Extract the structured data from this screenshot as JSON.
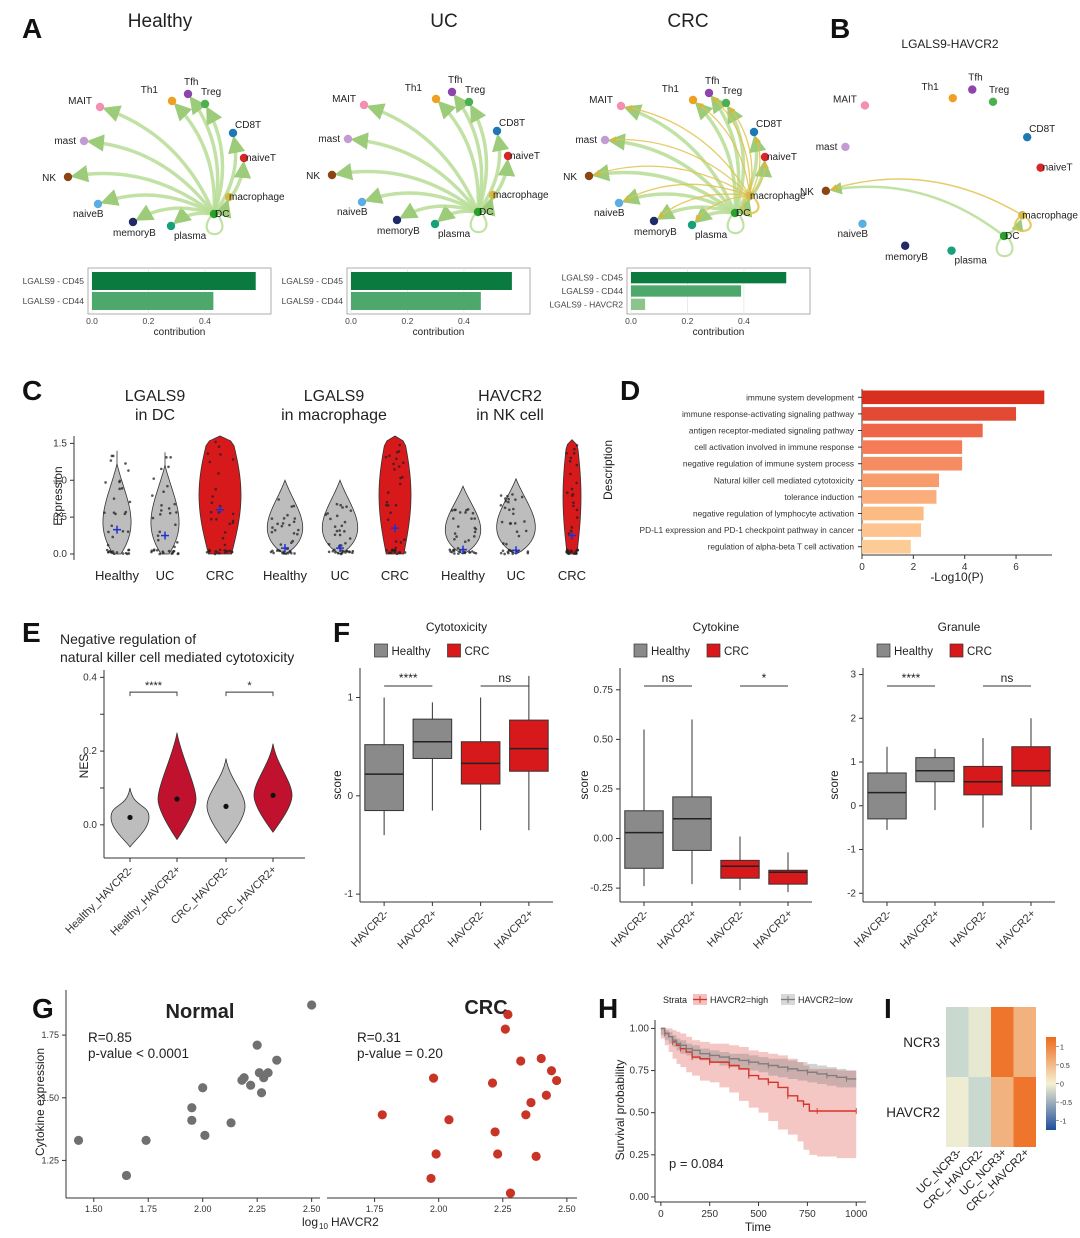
{
  "panel_labels": [
    "A",
    "B",
    "C",
    "D",
    "E",
    "F",
    "G",
    "H",
    "I"
  ],
  "colors": {
    "green_edge": "#b7dd95",
    "yellow_edge": "#e2c24a",
    "healthy_grey": "#bdbdbd",
    "crc_red": "#d7191c",
    "bar_dark": "#0b7a3e",
    "bar_mid": "#4ea86b",
    "bar_light": "#8cc48c",
    "scatter_grey": "#707070",
    "scatter_red": "#c83527",
    "km_high": "#d6342b",
    "km_low": "#7f7f7f"
  },
  "network": {
    "node_colors": {
      "Th1": "#f0a020",
      "Tfh": "#8e44ad",
      "Treg": "#4caf50",
      "CD8T": "#1f77b4",
      "naiveT": "#d62728",
      "macrophage": "#d4b94a",
      "DC": "#2ca02c",
      "plasma": "#17a07a",
      "memoryB": "#1f2a66",
      "naiveB": "#5dade2",
      "NK": "#8b4513",
      "mast": "#c39bd3",
      "MAIT": "#f48fb1"
    }
  },
  "chart_data": [
    {
      "id": "A-healthy",
      "type": "network",
      "title": "Healthy",
      "nodes": [
        "Th1",
        "Tfh",
        "Treg",
        "CD8T",
        "naiveT",
        "macrophage",
        "DC",
        "plasma",
        "memoryB",
        "naiveB",
        "NK",
        "mast",
        "MAIT"
      ],
      "green_edges_from": "DC",
      "yellow_edges_from": ""
    },
    {
      "id": "A-uc",
      "type": "network",
      "title": "UC",
      "nodes": [
        "Th1",
        "Tfh",
        "Treg",
        "CD8T",
        "naiveT",
        "macrophage",
        "DC",
        "plasma",
        "memoryB",
        "naiveB",
        "NK",
        "mast",
        "MAIT"
      ],
      "green_edges_from": "DC",
      "yellow_edges_from": ""
    },
    {
      "id": "A-crc",
      "type": "network",
      "title": "CRC",
      "nodes": [
        "Th1",
        "Tfh",
        "Treg",
        "CD8T",
        "naiveT",
        "macrophage",
        "DC",
        "plasma",
        "memoryB",
        "naiveB",
        "NK",
        "mast",
        "MAIT"
      ],
      "green_edges_from": "DC",
      "yellow_edges_from": "macrophage"
    },
    {
      "id": "A-healthy-bar",
      "type": "bar",
      "orientation": "horizontal",
      "categories": [
        "LGALS9 - CD45",
        "LGALS9 - CD44"
      ],
      "values": [
        0.58,
        0.43
      ],
      "xlabel": "contribution",
      "xticks": [
        "0.0",
        "0.2",
        "0.4"
      ],
      "xlim": [
        0,
        0.62
      ]
    },
    {
      "id": "A-uc-bar",
      "type": "bar",
      "orientation": "horizontal",
      "categories": [
        "LGALS9 - CD45",
        "LGALS9 - CD44"
      ],
      "values": [
        0.57,
        0.46
      ],
      "xlabel": "contribution",
      "xticks": [
        "0.0",
        "0.2",
        "0.4"
      ],
      "xlim": [
        0,
        0.62
      ]
    },
    {
      "id": "A-crc-bar",
      "type": "bar",
      "orientation": "horizontal",
      "categories": [
        "LGALS9 - CD45",
        "LGALS9 - CD44",
        "LGALS9 - HAVCR2"
      ],
      "values": [
        0.55,
        0.39,
        0.05
      ],
      "xlabel": "contribution",
      "xticks": [
        "0.0",
        "0.2",
        "0.4"
      ],
      "xlim": [
        0,
        0.62
      ]
    },
    {
      "id": "B",
      "type": "network",
      "title": "LGALS9-HAVCR2",
      "nodes": [
        "Th1",
        "Tfh",
        "Treg",
        "CD8T",
        "naiveT",
        "macrophage",
        "DC",
        "plasma",
        "memoryB",
        "naiveB",
        "NK",
        "mast",
        "MAIT"
      ],
      "edges": [
        [
          "DC",
          "NK"
        ],
        [
          "DC",
          "macrophage"
        ],
        [
          "macrophage",
          "macrophage"
        ],
        [
          "macrophage",
          "NK"
        ]
      ]
    },
    {
      "id": "C",
      "type": "violin",
      "groups": [
        {
          "title": "LGALS9 in DC",
          "title_lines": [
            "LGALS9",
            "in DC"
          ],
          "categories": [
            "Healthy",
            "UC",
            "CRC"
          ],
          "means": [
            0.33,
            0.25,
            0.6
          ],
          "max": [
            1.4,
            1.38,
            1.6
          ]
        },
        {
          "title": "LGALS9 in macrophage",
          "title_lines": [
            "LGALS9",
            "in macrophage"
          ],
          "categories": [
            "Healthy",
            "UC",
            "CRC"
          ],
          "means": [
            0.08,
            0.08,
            0.35
          ],
          "max": [
            1.0,
            1.0,
            1.6
          ]
        },
        {
          "title": "HAVCR2 in NK cell",
          "title_lines": [
            "HAVCR2",
            "in NK cell"
          ],
          "categories": [
            "Healthy",
            "UC",
            "CRC"
          ],
          "means": [
            0.06,
            0.05,
            0.25
          ],
          "max": [
            0.92,
            1.02,
            1.55
          ]
        }
      ],
      "ylabel": "Expression",
      "yticks": [
        0.0,
        0.5,
        1.0,
        1.5
      ],
      "ylim": [
        0,
        1.6
      ]
    },
    {
      "id": "D",
      "type": "bar",
      "orientation": "horizontal",
      "categories": [
        "immune system development",
        "immune response-activating signaling pathway",
        "antigen receptor-mediated signaling pathway",
        "cell activation involved in immune response",
        "negative regulation of immune system process",
        "Natural killer cell mediated cytotoxicity",
        "tolerance induction",
        "negative regulation of lymphocyte activation",
        "PD-L1 expression and PD-1 checkpoint pathway in cancer",
        "regulation of alpha-beta T cell activation"
      ],
      "values": [
        7.1,
        6.0,
        4.7,
        3.9,
        3.9,
        3.0,
        2.9,
        2.4,
        2.3,
        1.9
      ],
      "xlabel": "-Log10(P)",
      "ylabel": "Description",
      "xticks": [
        0,
        2,
        4,
        6
      ],
      "xlim": [
        0,
        7.4
      ]
    },
    {
      "id": "E",
      "type": "violin",
      "title": "Negative regulation of natural killer cell mediated cytotoxicity",
      "title_lines": [
        "Negative regulation of",
        "natural killer cell mediated cytotoxicity"
      ],
      "categories": [
        "Healthy_HAVCR2-",
        "Healthy_HAVCR2+",
        "CRC_HAVCR2-",
        "CRC_HAVCR2+"
      ],
      "means": [
        0.02,
        0.07,
        0.05,
        0.08
      ],
      "ylabel": "NES",
      "yticks": [
        0.0,
        0.1,
        0.2,
        0.3,
        0.4
      ],
      "ytick_labels": [
        "0.0",
        "",
        "0.2",
        "",
        "0.4"
      ],
      "ylim": [
        -0.09,
        0.42
      ],
      "significance": [
        "****",
        "*"
      ]
    },
    {
      "id": "F-cytotoxicity",
      "type": "box",
      "title": "Cytotoxicity",
      "legend": [
        "Healthy",
        "CRC"
      ],
      "categories": [
        "HAVCR2-",
        "HAVCR2+",
        "HAVCR2-",
        "HAVCR2+"
      ],
      "boxes": [
        {
          "min": -0.4,
          "q1": -0.15,
          "median": 0.22,
          "q3": 0.52,
          "max": 1.0
        },
        {
          "min": -0.15,
          "q1": 0.38,
          "median": 0.55,
          "q3": 0.78,
          "max": 0.95
        },
        {
          "min": -0.35,
          "q1": 0.12,
          "median": 0.33,
          "q3": 0.55,
          "max": 1.0
        },
        {
          "min": -0.35,
          "q1": 0.25,
          "median": 0.48,
          "q3": 0.77,
          "max": 1.22
        }
      ],
      "ylabel": "score",
      "yticks": [
        -1,
        0,
        1
      ],
      "ylim": [
        -1.08,
        1.3
      ],
      "significance": [
        "****",
        "ns"
      ]
    },
    {
      "id": "F-cytokine",
      "type": "box",
      "title": "Cytokine",
      "legend": [
        "Healthy",
        "CRC"
      ],
      "categories": [
        "HAVCR2-",
        "HAVCR2+",
        "HAVCR2-",
        "HAVCR2+"
      ],
      "boxes": [
        {
          "min": -0.24,
          "q1": -0.15,
          "median": 0.03,
          "q3": 0.14,
          "max": 0.55
        },
        {
          "min": -0.23,
          "q1": -0.06,
          "median": 0.1,
          "q3": 0.21,
          "max": 0.6
        },
        {
          "min": -0.26,
          "q1": -0.2,
          "median": -0.14,
          "q3": -0.11,
          "max": 0.01
        },
        {
          "min": -0.27,
          "q1": -0.23,
          "median": -0.17,
          "q3": -0.16,
          "max": -0.07
        }
      ],
      "ylabel": "score",
      "yticks": [
        -0.25,
        0.0,
        0.25,
        0.5,
        0.75
      ],
      "ytick_labels": [
        "-0.25",
        "0.00",
        "0.25",
        "0.50",
        "0.75"
      ],
      "ylim": [
        -0.32,
        0.86
      ],
      "significance": [
        "ns",
        "*"
      ]
    },
    {
      "id": "F-granule",
      "type": "box",
      "title": "Granule",
      "legend": [
        "Healthy",
        "CRC"
      ],
      "categories": [
        "HAVCR2-",
        "HAVCR2+",
        "HAVCR2-",
        "HAVCR2+"
      ],
      "boxes": [
        {
          "min": -0.55,
          "q1": -0.3,
          "median": 0.3,
          "q3": 0.75,
          "max": 1.35
        },
        {
          "min": -0.1,
          "q1": 0.55,
          "median": 0.8,
          "q3": 1.1,
          "max": 1.3
        },
        {
          "min": -0.5,
          "q1": 0.25,
          "median": 0.55,
          "q3": 0.9,
          "max": 1.55
        },
        {
          "min": -0.55,
          "q1": 0.45,
          "median": 0.8,
          "q3": 1.35,
          "max": 2.0
        }
      ],
      "ylabel": "score",
      "yticks": [
        -2,
        -1,
        0,
        1,
        2,
        3
      ],
      "ylim": [
        -2.2,
        3.15
      ],
      "significance": [
        "****",
        "ns"
      ]
    },
    {
      "id": "G-normal",
      "type": "scatter",
      "title": "Normal",
      "annotation": [
        "R=0.85",
        "p-value < 0.0001"
      ],
      "x": [
        1.43,
        1.65,
        1.74,
        1.95,
        1.95,
        2.0,
        2.01,
        2.13,
        2.18,
        2.19,
        2.22,
        2.25,
        2.26,
        2.27,
        2.28,
        2.3,
        2.34,
        2.5
      ],
      "y": [
        1.33,
        1.19,
        1.33,
        1.46,
        1.41,
        1.54,
        1.35,
        1.4,
        1.57,
        1.58,
        1.55,
        1.71,
        1.6,
        1.52,
        1.58,
        1.6,
        1.65,
        1.87
      ],
      "xlabel": "log10 HAVCR2",
      "ylabel": "Cytokine expression",
      "xticks": [
        1.5,
        1.75,
        2.0,
        2.25,
        2.5
      ],
      "xtick_labels": [
        "1.50",
        "1.75",
        "2.00",
        "2.25",
        "2.50"
      ],
      "yticks": [
        1.25,
        1.5,
        1.75
      ],
      "ytick_labels": [
        "1.25",
        "1.50",
        "1.75"
      ],
      "xlim": [
        1.4,
        2.52
      ],
      "ylim": [
        1.1,
        1.93
      ]
    },
    {
      "id": "G-crc",
      "type": "scatter",
      "title": "CRC",
      "annotation": [
        "R=0.31",
        "p-value = 0.20"
      ],
      "x": [
        1.78,
        1.97,
        1.98,
        1.99,
        2.04,
        2.21,
        2.22,
        2.23,
        2.26,
        2.27,
        2.28,
        2.32,
        2.34,
        2.36,
        2.38,
        2.4,
        2.42,
        2.44,
        2.46
      ],
      "y": [
        1.42,
        1.16,
        1.57,
        1.26,
        1.4,
        1.55,
        1.35,
        1.26,
        1.77,
        1.83,
        1.1,
        1.64,
        1.42,
        1.47,
        1.25,
        1.65,
        1.5,
        1.6,
        1.56
      ],
      "xticks": [
        1.75,
        2.0,
        2.25,
        2.5
      ],
      "xtick_labels": [
        "1.75",
        "2.00",
        "2.25",
        "2.50"
      ],
      "xlim": [
        1.58,
        2.52
      ],
      "ylim": [
        1.08,
        1.93
      ]
    },
    {
      "id": "H",
      "type": "line",
      "kind": "kaplan-meier",
      "legend_title": "Strata",
      "series": [
        {
          "name": "HAVCR2=high",
          "x": [
            0,
            20,
            40,
            60,
            80,
            100,
            130,
            160,
            200,
            250,
            300,
            350,
            400,
            450,
            500,
            550,
            600,
            650,
            700,
            730,
            760,
            800,
            900,
            1000
          ],
          "y": [
            1.0,
            0.97,
            0.95,
            0.92,
            0.9,
            0.88,
            0.86,
            0.83,
            0.82,
            0.8,
            0.8,
            0.78,
            0.76,
            0.72,
            0.7,
            0.68,
            0.65,
            0.6,
            0.57,
            0.55,
            0.51,
            0.51,
            0.51,
            0.51
          ],
          "ci_lower": [
            1.0,
            0.94,
            0.9,
            0.86,
            0.82,
            0.79,
            0.77,
            0.74,
            0.72,
            0.69,
            0.68,
            0.65,
            0.62,
            0.57,
            0.53,
            0.5,
            0.45,
            0.4,
            0.37,
            0.33,
            0.28,
            0.25,
            0.24,
            0.23
          ],
          "ci_upper": [
            1.0,
            1.0,
            1.0,
            0.99,
            0.98,
            0.97,
            0.95,
            0.93,
            0.92,
            0.91,
            0.91,
            0.9,
            0.89,
            0.87,
            0.86,
            0.85,
            0.84,
            0.82,
            0.8,
            0.78,
            0.76,
            0.76,
            0.75,
            0.75
          ]
        },
        {
          "name": "HAVCR2=low",
          "x": [
            0,
            20,
            40,
            60,
            80,
            100,
            130,
            160,
            200,
            250,
            300,
            350,
            400,
            450,
            500,
            550,
            600,
            650,
            700,
            750,
            800,
            850,
            900,
            950,
            1000
          ],
          "y": [
            1.0,
            0.97,
            0.95,
            0.93,
            0.91,
            0.9,
            0.88,
            0.87,
            0.85,
            0.84,
            0.83,
            0.82,
            0.81,
            0.8,
            0.79,
            0.78,
            0.77,
            0.76,
            0.75,
            0.74,
            0.73,
            0.72,
            0.71,
            0.7,
            0.7
          ],
          "ci_lower": [
            1.0,
            0.96,
            0.93,
            0.91,
            0.89,
            0.87,
            0.85,
            0.84,
            0.82,
            0.81,
            0.8,
            0.78,
            0.77,
            0.76,
            0.75,
            0.74,
            0.72,
            0.71,
            0.7,
            0.69,
            0.68,
            0.67,
            0.66,
            0.65,
            0.65
          ],
          "ci_upper": [
            1.0,
            0.99,
            0.98,
            0.96,
            0.94,
            0.93,
            0.91,
            0.9,
            0.88,
            0.87,
            0.86,
            0.85,
            0.85,
            0.84,
            0.83,
            0.82,
            0.82,
            0.81,
            0.8,
            0.79,
            0.78,
            0.77,
            0.76,
            0.75,
            0.75
          ]
        }
      ],
      "annotation": "p = 0.084",
      "xlabel": "Time",
      "ylabel": "Survival probability",
      "xticks": [
        0,
        250,
        500,
        750,
        1000
      ],
      "yticks": [
        0,
        0.25,
        0.5,
        0.75,
        1.0
      ],
      "ytick_labels": [
        "0.00",
        "0.25",
        "0.50",
        "0.75",
        "1.00"
      ],
      "xlim": [
        -30,
        1050
      ],
      "ylim": [
        -0.03,
        1.05
      ]
    },
    {
      "id": "I",
      "type": "heatmap",
      "rows": [
        "NCR3",
        "HAVCR2"
      ],
      "columns": [
        "UC_NCR3-",
        "CRC_HAVCR2-",
        "UC_NCR3+",
        "CRC_HAVCR2+"
      ],
      "values": [
        [
          -0.6,
          -0.2,
          1.2,
          0.6
        ],
        [
          -0.1,
          -0.6,
          0.6,
          1.2
        ]
      ],
      "scale": {
        "ticks": [
          1,
          0.5,
          0,
          -0.5,
          -1
        ],
        "tick_labels": [
          "1",
          "0.5",
          "0",
          "-0.5",
          "-1"
        ],
        "low": "#1f4e9c",
        "mid": "#f5f0d2",
        "high": "#ee6a1e"
      }
    }
  ]
}
